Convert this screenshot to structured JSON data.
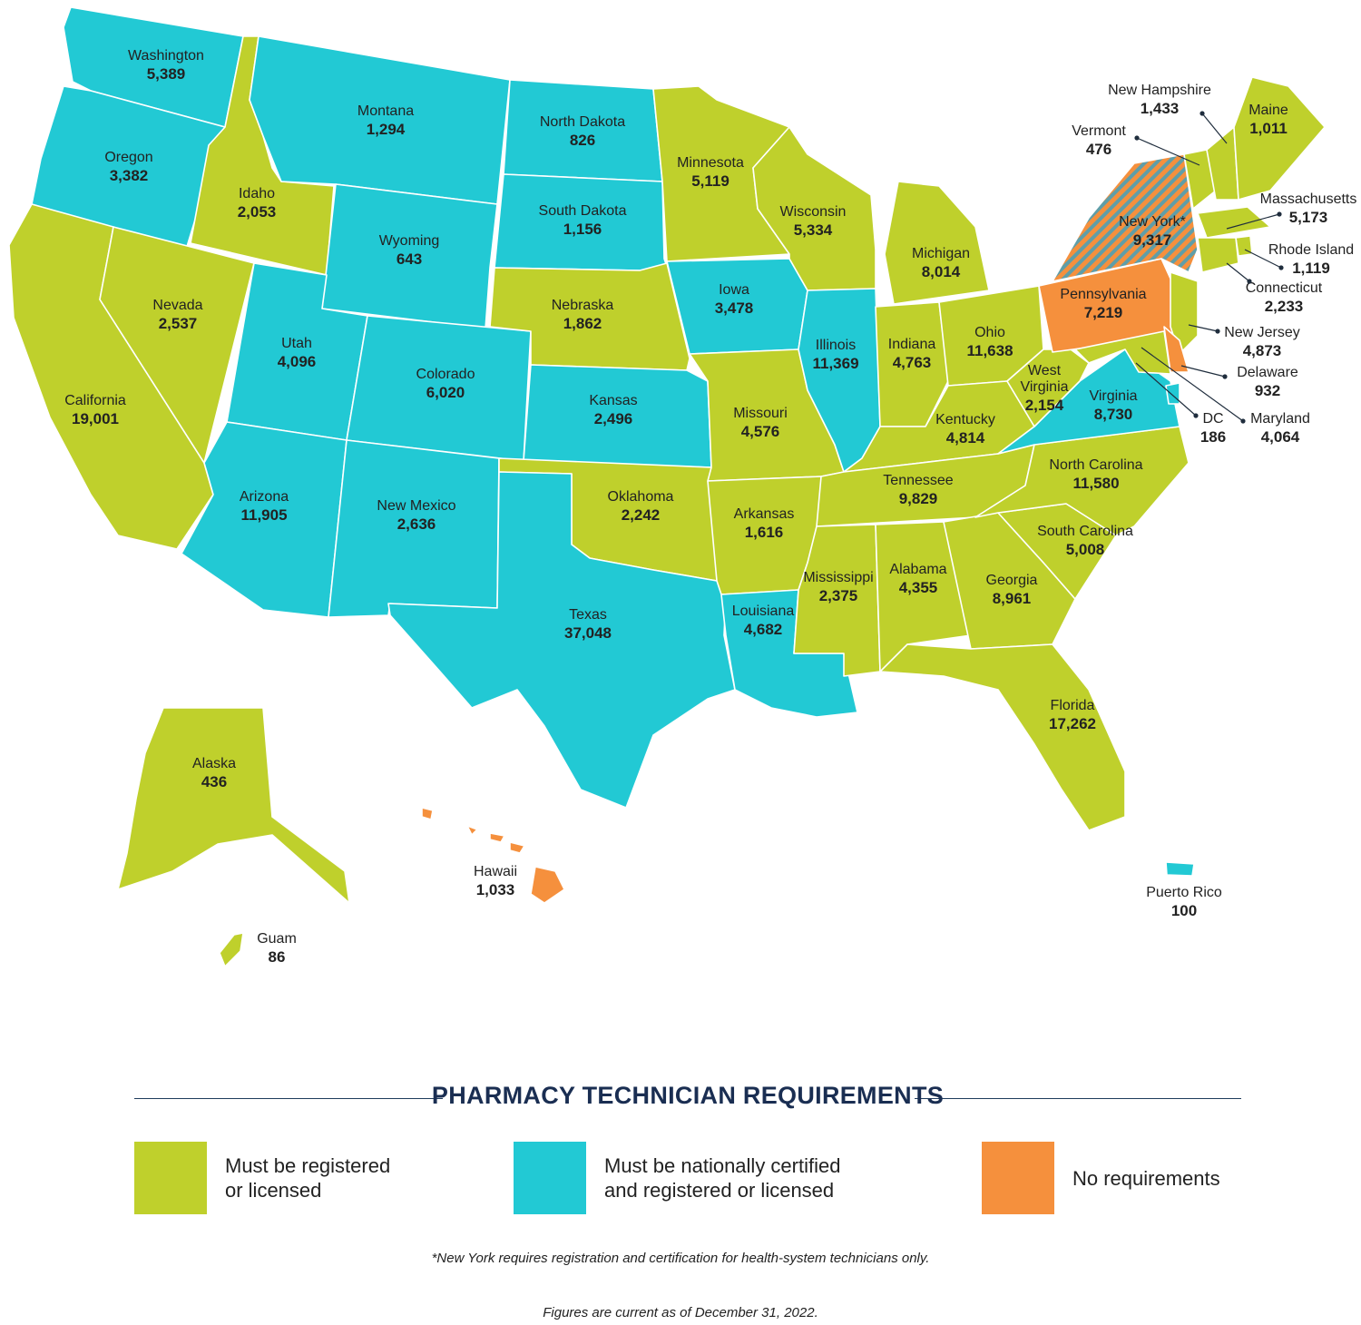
{
  "colors": {
    "registered": "#bfd02c",
    "certified": "#22c9d4",
    "none": "#f5903d",
    "hatch": "#5f9ea8",
    "title": "#1a2e52"
  },
  "legend": {
    "title": "PHARMACY TECHNICIAN REQUIREMENTS",
    "items": [
      {
        "key": "registered",
        "label_line1": "Must be registered",
        "label_line2": "or licensed"
      },
      {
        "key": "certified",
        "label_line1": "Must be nationally certified",
        "label_line2": "and registered or licensed"
      },
      {
        "key": "none",
        "label_line1": "No requirements",
        "label_line2": ""
      }
    ]
  },
  "footnote": "*New York requires registration and certification for health-system technicians only.",
  "figures_note": "Figures are current as of December 31, 2022.",
  "regions": [
    {
      "name": "Washington",
      "value": "5,389",
      "category": "certified"
    },
    {
      "name": "Oregon",
      "value": "3,382",
      "category": "certified"
    },
    {
      "name": "California",
      "value": "19,001",
      "category": "registered"
    },
    {
      "name": "Idaho",
      "value": "2,053",
      "category": "registered"
    },
    {
      "name": "Nevada",
      "value": "2,537",
      "category": "registered"
    },
    {
      "name": "Montana",
      "value": "1,294",
      "category": "certified"
    },
    {
      "name": "Wyoming",
      "value": "643",
      "category": "certified"
    },
    {
      "name": "Utah",
      "value": "4,096",
      "category": "certified"
    },
    {
      "name": "Arizona",
      "value": "11,905",
      "category": "certified"
    },
    {
      "name": "Colorado",
      "value": "6,020",
      "category": "certified"
    },
    {
      "name": "New Mexico",
      "value": "2,636",
      "category": "certified"
    },
    {
      "name": "North Dakota",
      "value": "826",
      "category": "certified"
    },
    {
      "name": "South Dakota",
      "value": "1,156",
      "category": "certified"
    },
    {
      "name": "Nebraska",
      "value": "1,862",
      "category": "registered"
    },
    {
      "name": "Kansas",
      "value": "2,496",
      "category": "certified"
    },
    {
      "name": "Oklahoma",
      "value": "2,242",
      "category": "registered"
    },
    {
      "name": "Texas",
      "value": "37,048",
      "category": "certified"
    },
    {
      "name": "Minnesota",
      "value": "5,119",
      "category": "registered"
    },
    {
      "name": "Iowa",
      "value": "3,478",
      "category": "certified"
    },
    {
      "name": "Missouri",
      "value": "4,576",
      "category": "registered"
    },
    {
      "name": "Arkansas",
      "value": "1,616",
      "category": "registered"
    },
    {
      "name": "Louisiana",
      "value": "4,682",
      "category": "certified"
    },
    {
      "name": "Wisconsin",
      "value": "5,334",
      "category": "registered"
    },
    {
      "name": "Illinois",
      "value": "11,369",
      "category": "certified"
    },
    {
      "name": "Michigan",
      "value": "8,014",
      "category": "registered"
    },
    {
      "name": "Indiana",
      "value": "4,763",
      "category": "registered"
    },
    {
      "name": "Ohio",
      "value": "11,638",
      "category": "registered"
    },
    {
      "name": "Kentucky",
      "value": "4,814",
      "category": "registered"
    },
    {
      "name": "Tennessee",
      "value": "9,829",
      "category": "registered"
    },
    {
      "name": "Mississippi",
      "value": "2,375",
      "category": "registered"
    },
    {
      "name": "Alabama",
      "value": "4,355",
      "category": "registered"
    },
    {
      "name": "Georgia",
      "value": "8,961",
      "category": "registered"
    },
    {
      "name": "Florida",
      "value": "17,262",
      "category": "registered"
    },
    {
      "name": "South Carolina",
      "value": "5,008",
      "category": "registered"
    },
    {
      "name": "North Carolina",
      "value": "11,580",
      "category": "registered"
    },
    {
      "name": "Virginia",
      "value": "8,730",
      "category": "certified"
    },
    {
      "name": "West Virginia",
      "value": "2,154",
      "category": "registered"
    },
    {
      "name": "Pennsylvania",
      "value": "7,219",
      "category": "none"
    },
    {
      "name": "New York*",
      "value": "9,317",
      "category": "none-hatched"
    },
    {
      "name": "Vermont",
      "value": "476",
      "category": "registered"
    },
    {
      "name": "New Hampshire",
      "value": "1,433",
      "category": "registered"
    },
    {
      "name": "Maine",
      "value": "1,011",
      "category": "registered"
    },
    {
      "name": "Massachusetts",
      "value": "5,173",
      "category": "registered"
    },
    {
      "name": "Rhode Island",
      "value": "1,119",
      "category": "registered"
    },
    {
      "name": "Connecticut",
      "value": "2,233",
      "category": "registered"
    },
    {
      "name": "New Jersey",
      "value": "4,873",
      "category": "registered"
    },
    {
      "name": "Delaware",
      "value": "932",
      "category": "none"
    },
    {
      "name": "Maryland",
      "value": "4,064",
      "category": "registered"
    },
    {
      "name": "DC",
      "value": "186",
      "category": "certified"
    },
    {
      "name": "Alaska",
      "value": "436",
      "category": "registered"
    },
    {
      "name": "Hawaii",
      "value": "1,033",
      "category": "none"
    },
    {
      "name": "Guam",
      "value": "86",
      "category": "registered"
    },
    {
      "name": "Puerto Rico",
      "value": "100",
      "category": "certified"
    }
  ]
}
